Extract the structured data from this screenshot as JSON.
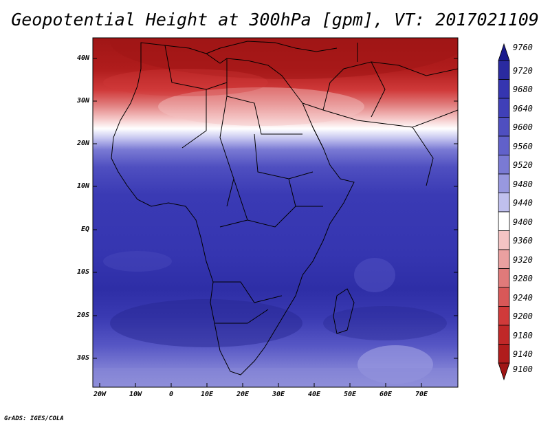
{
  "title": "Geopotential Height at 300hPa [gpm], VT: 2017021109",
  "credit": "GrADS: IGES/COLA",
  "axes": {
    "lat_labels": [
      "40N",
      "30N",
      "20N",
      "10N",
      "EQ",
      "10S",
      "20S",
      "30S"
    ],
    "lon_labels": [
      "20W",
      "10W",
      "0",
      "10E",
      "20E",
      "30E",
      "40E",
      "50E",
      "60E",
      "70E"
    ]
  },
  "colorbar": {
    "levels": [
      9760,
      9720,
      9680,
      9640,
      9600,
      9560,
      9520,
      9480,
      9440,
      9400,
      9360,
      9320,
      9280,
      9240,
      9200,
      9180,
      9140,
      9100
    ],
    "labels": [
      "9760",
      "9720",
      "9680",
      "9640",
      "9600",
      "9560",
      "9520",
      "9480",
      "9440",
      "9400",
      "9360",
      "9320",
      "9280",
      "9240",
      "9200",
      "9180",
      "9140",
      "9100"
    ],
    "colors": [
      "#1a1a8c",
      "#2a2aa0",
      "#3535b0",
      "#4040b8",
      "#4f4fc0",
      "#6161ca",
      "#7a7ad4",
      "#9898df",
      "#c0c0ee",
      "#ffffff",
      "#f4c4c4",
      "#eaa0a0",
      "#e07a7a",
      "#d85858",
      "#d03a3a",
      "#c02828",
      "#b01c1c",
      "#a01616"
    ]
  }
}
